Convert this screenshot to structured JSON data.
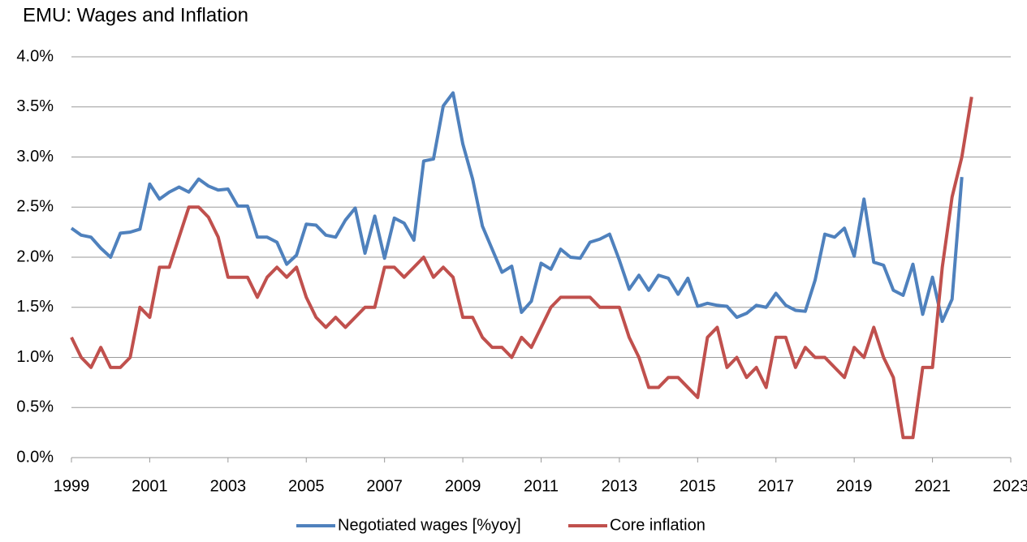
{
  "chart_data": {
    "type": "line",
    "title": "EMU: Wages and Inflation",
    "xlim": [
      1999,
      2023
    ],
    "xticks": [
      1999,
      2001,
      2003,
      2005,
      2007,
      2009,
      2011,
      2013,
      2015,
      2017,
      2019,
      2021,
      2023
    ],
    "ylim": [
      0,
      4
    ],
    "yticks": [
      {
        "value": 0,
        "label": "0.0%"
      },
      {
        "value": 0.5,
        "label": "0.5%"
      },
      {
        "value": 1,
        "label": "1.0%"
      },
      {
        "value": 1.5,
        "label": "1.5%"
      },
      {
        "value": 2,
        "label": "2.0%"
      },
      {
        "value": 2.5,
        "label": "2.5%"
      },
      {
        "value": 3,
        "label": "3.0%"
      },
      {
        "value": 3.5,
        "label": "3.5%"
      },
      {
        "value": 4,
        "label": "4.0%"
      }
    ],
    "grid": true,
    "legend": "bottom",
    "series": [
      {
        "name": "Negotiated wages [%yoy]",
        "color": "#4f81bd",
        "x": [
          1999,
          1999.25,
          1999.5,
          1999.75,
          2000,
          2000.25,
          2000.5,
          2000.75,
          2001,
          2001.25,
          2001.5,
          2001.75,
          2002,
          2002.25,
          2002.5,
          2002.75,
          2003,
          2003.25,
          2003.5,
          2003.75,
          2004,
          2004.25,
          2004.5,
          2004.75,
          2005,
          2005.25,
          2005.5,
          2005.75,
          2006,
          2006.25,
          2006.5,
          2006.75,
          2007,
          2007.25,
          2007.5,
          2007.75,
          2008,
          2008.25,
          2008.5,
          2008.75,
          2009,
          2009.25,
          2009.5,
          2009.75,
          2010,
          2010.25,
          2010.5,
          2010.75,
          2011,
          2011.25,
          2011.5,
          2011.75,
          2012,
          2012.25,
          2012.5,
          2012.75,
          2013,
          2013.25,
          2013.5,
          2013.75,
          2014,
          2014.25,
          2014.5,
          2014.75,
          2015,
          2015.25,
          2015.5,
          2015.75,
          2016,
          2016.25,
          2016.5,
          2016.75,
          2017,
          2017.25,
          2017.5,
          2017.75,
          2018,
          2018.25,
          2018.5,
          2018.75,
          2019,
          2019.25,
          2019.5,
          2019.75,
          2020,
          2020.25,
          2020.5,
          2020.75,
          2021,
          2021.25,
          2021.5,
          2021.75
        ],
        "values": [
          2.29,
          2.22,
          2.2,
          2.09,
          2.0,
          2.24,
          2.25,
          2.28,
          2.73,
          2.58,
          2.65,
          2.7,
          2.65,
          2.78,
          2.71,
          2.67,
          2.68,
          2.51,
          2.51,
          2.2,
          2.2,
          2.15,
          1.93,
          2.02,
          2.33,
          2.32,
          2.22,
          2.2,
          2.37,
          2.49,
          2.04,
          2.41,
          1.99,
          2.39,
          2.34,
          2.17,
          2.96,
          2.98,
          3.51,
          3.64,
          3.13,
          2.78,
          2.31,
          2.08,
          1.85,
          1.91,
          1.45,
          1.56,
          1.94,
          1.88,
          2.08,
          2.0,
          1.99,
          2.15,
          2.18,
          2.23,
          1.97,
          1.68,
          1.82,
          1.67,
          1.82,
          1.79,
          1.63,
          1.79,
          1.51,
          1.54,
          1.52,
          1.51,
          1.4,
          1.44,
          1.52,
          1.5,
          1.64,
          1.52,
          1.47,
          1.46,
          1.77,
          2.23,
          2.2,
          2.29,
          2.01,
          2.58,
          1.95,
          1.92,
          1.67,
          1.62,
          1.93,
          1.43,
          1.8,
          1.36,
          1.58,
          2.8
        ]
      },
      {
        "name": "Core inflation",
        "color": "#c0504d",
        "x": [
          1999,
          1999.25,
          1999.5,
          1999.75,
          2000,
          2000.25,
          2000.5,
          2000.75,
          2001,
          2001.25,
          2001.5,
          2001.75,
          2002,
          2002.25,
          2002.5,
          2002.75,
          2003,
          2003.25,
          2003.5,
          2003.75,
          2004,
          2004.25,
          2004.5,
          2004.75,
          2005,
          2005.25,
          2005.5,
          2005.75,
          2006,
          2006.25,
          2006.5,
          2006.75,
          2007,
          2007.25,
          2007.5,
          2007.75,
          2008,
          2008.25,
          2008.5,
          2008.75,
          2009,
          2009.25,
          2009.5,
          2009.75,
          2010,
          2010.25,
          2010.5,
          2010.75,
          2011,
          2011.25,
          2011.5,
          2011.75,
          2012,
          2012.25,
          2012.5,
          2012.75,
          2013,
          2013.25,
          2013.5,
          2013.75,
          2014,
          2014.25,
          2014.5,
          2014.75,
          2015,
          2015.25,
          2015.5,
          2015.75,
          2016,
          2016.25,
          2016.5,
          2016.75,
          2017,
          2017.25,
          2017.5,
          2017.75,
          2018,
          2018.25,
          2018.5,
          2018.75,
          2019,
          2019.25,
          2019.5,
          2019.75,
          2020,
          2020.25,
          2020.5,
          2020.75,
          2021,
          2021.25,
          2021.5,
          2021.75,
          2022
        ],
        "values": [
          1.2,
          1.0,
          0.9,
          1.1,
          0.9,
          0.9,
          1.0,
          1.5,
          1.4,
          1.9,
          1.9,
          2.2,
          2.5,
          2.5,
          2.4,
          2.2,
          1.8,
          1.8,
          1.8,
          1.6,
          1.8,
          1.9,
          1.8,
          1.9,
          1.6,
          1.4,
          1.3,
          1.4,
          1.3,
          1.4,
          1.5,
          1.5,
          1.9,
          1.9,
          1.8,
          1.9,
          2.0,
          1.8,
          1.9,
          1.8,
          1.4,
          1.4,
          1.2,
          1.1,
          1.1,
          1.0,
          1.2,
          1.1,
          1.3,
          1.5,
          1.6,
          1.6,
          1.6,
          1.6,
          1.5,
          1.5,
          1.5,
          1.2,
          1.0,
          0.7,
          0.7,
          0.8,
          0.8,
          0.7,
          0.6,
          1.2,
          1.3,
          0.9,
          1.0,
          0.8,
          0.9,
          0.7,
          1.2,
          1.2,
          0.9,
          1.1,
          1.0,
          1.0,
          0.9,
          0.8,
          1.1,
          1.0,
          1.3,
          1.0,
          0.8,
          0.2,
          0.2,
          0.9,
          0.9,
          1.9,
          2.6,
          3.0,
          3.6
        ]
      }
    ]
  }
}
